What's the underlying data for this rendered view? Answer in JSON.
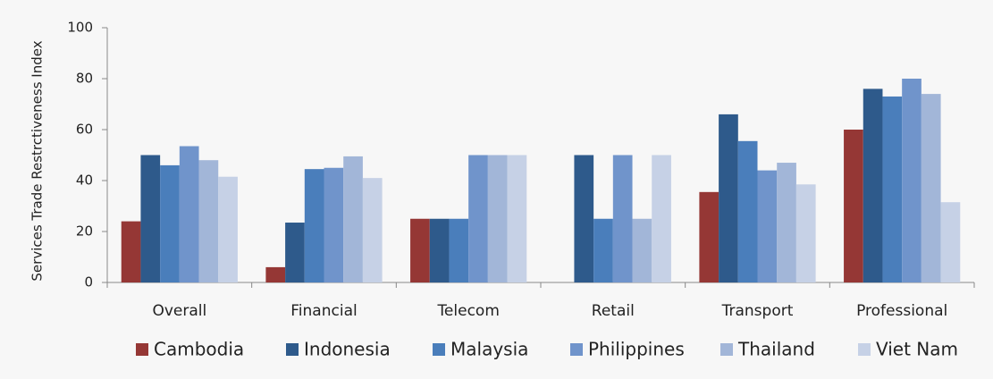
{
  "chart_data": {
    "type": "bar",
    "y_label": "Services Trade Restrctiveness Index",
    "categories": [
      "Overall",
      "Financial",
      "Telecom",
      "Retail",
      "Transport",
      "Professional"
    ],
    "series": [
      {
        "name": "Cambodia",
        "color": "#953735",
        "values": [
          24,
          6,
          25,
          0,
          35.5,
          60
        ]
      },
      {
        "name": "Indonesia",
        "color": "#2e5a8b",
        "values": [
          50,
          23.5,
          25,
          50,
          66,
          76
        ]
      },
      {
        "name": "Malaysia",
        "color": "#4a7ebb",
        "values": [
          46,
          44.5,
          25,
          25,
          55.5,
          73
        ]
      },
      {
        "name": "Philippines",
        "color": "#7094cb",
        "values": [
          53.5,
          45,
          50,
          50,
          44,
          80
        ]
      },
      {
        "name": "Thailand",
        "color": "#a2b6d8",
        "values": [
          48,
          49.5,
          50,
          25,
          47,
          74
        ]
      },
      {
        "name": "Viet Nam",
        "color": "#c6d1e6",
        "values": [
          41.5,
          41,
          50,
          50,
          38.5,
          31.5
        ]
      }
    ],
    "ylim": [
      0,
      100
    ],
    "yticks": [
      0,
      20,
      40,
      60,
      80,
      100
    ],
    "grid": false,
    "legend": "bottom"
  }
}
